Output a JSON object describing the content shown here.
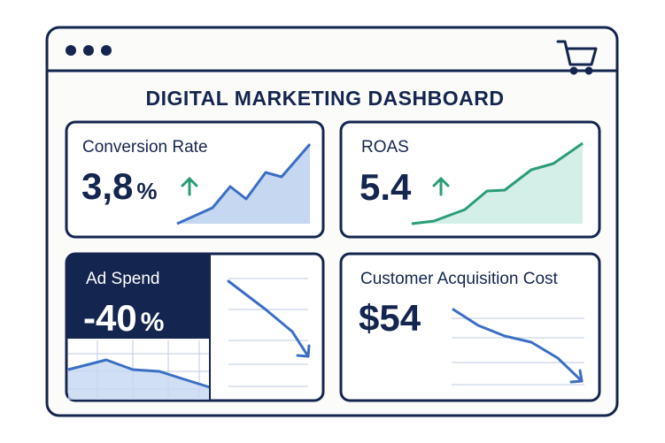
{
  "header": {
    "title": "DIGITAL MARKETING DASHBOARD"
  },
  "cards": [
    {
      "label": "Conversion Rate",
      "value": "3,8",
      "unit": "%"
    },
    {
      "label": "ROAS",
      "value": "5.4"
    },
    {
      "label": "Ad Spend",
      "value": "-40",
      "unit": "%"
    },
    {
      "label": "Customer Acquisition Cost",
      "value": "$54"
    }
  ]
}
